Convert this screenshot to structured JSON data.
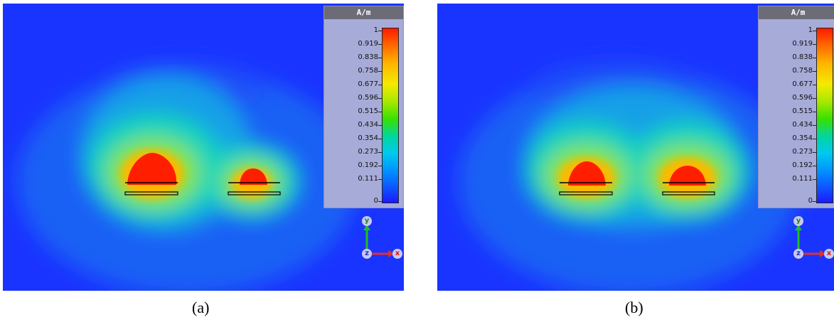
{
  "panels": [
    {
      "caption": "(a)",
      "legend": {
        "unit": "A/m",
        "ticks": [
          "1",
          "0.919",
          "0.838",
          "0.758",
          "0.677",
          "0.596",
          "0.515",
          "0.434",
          "0.354",
          "0.273",
          "0.192",
          "0.111",
          "0"
        ]
      },
      "axes": {
        "y": "y",
        "z": "z",
        "x": "x"
      }
    },
    {
      "caption": "(b)",
      "legend": {
        "unit": "A/m",
        "ticks": [
          "1",
          "0.919",
          "0.838",
          "0.758",
          "0.677",
          "0.596",
          "0.515",
          "0.434",
          "0.354",
          "0.273",
          "0.192",
          "0.111",
          "0"
        ]
      },
      "axes": {
        "y": "y",
        "z": "z",
        "x": "x"
      }
    }
  ],
  "colors": {
    "background_field": "#1a3cff",
    "hot": "#ff1a00",
    "legend_panel": "#a7abd8",
    "legend_header": "#6c6c78"
  }
}
